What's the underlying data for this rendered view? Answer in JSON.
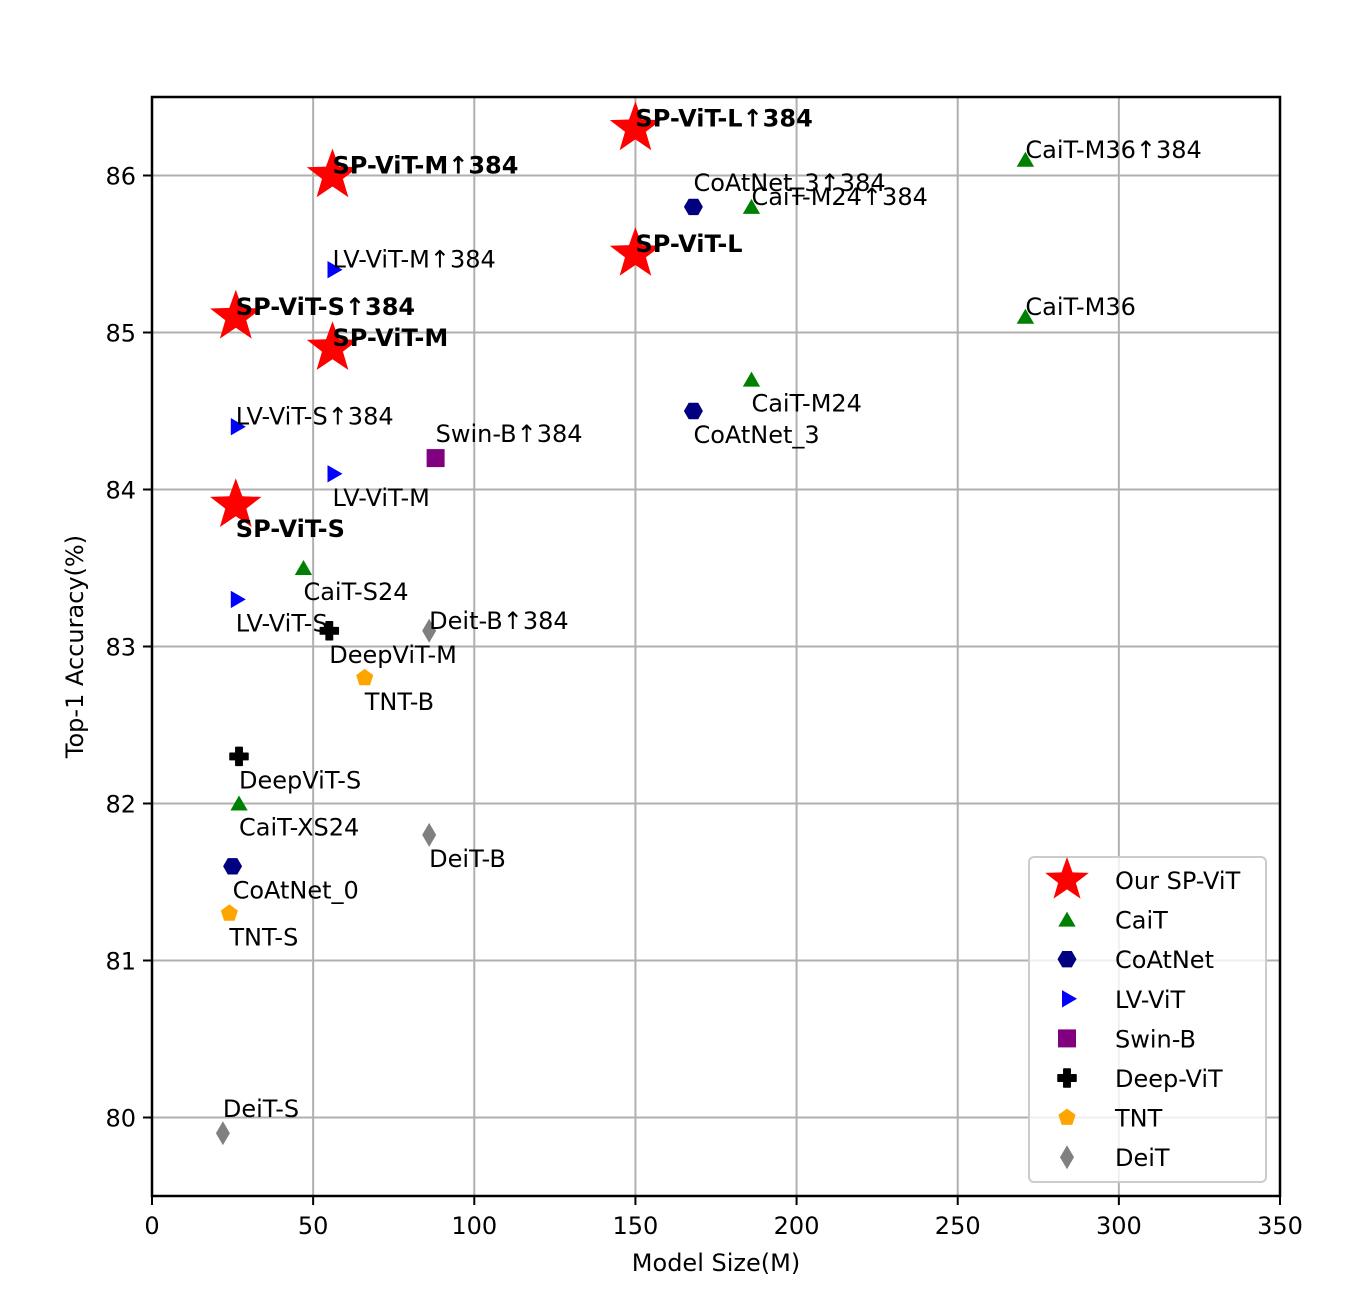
{
  "chart_data": {
    "type": "scatter",
    "xlabel": "Model Size(M)",
    "ylabel": "Top-1 Accuracy(%)",
    "xlim": [
      0,
      350
    ],
    "ylim": [
      79.5,
      86.5
    ],
    "xticks": [
      0,
      50,
      100,
      150,
      200,
      250,
      300,
      350
    ],
    "yticks": [
      80,
      81,
      82,
      83,
      84,
      85,
      86
    ],
    "grid": true,
    "legend_position": "lower-right",
    "series": [
      {
        "name": "Our SP-ViT",
        "marker": "star",
        "color": "#ff0000",
        "points": [
          {
            "x": 26,
            "y": 83.9,
            "label": "SP-ViT-S",
            "label_pos": "below",
            "bold": true
          },
          {
            "x": 26,
            "y": 85.1,
            "label": "SP-ViT-S↑384",
            "label_pos": "right",
            "bold": true
          },
          {
            "x": 56,
            "y": 84.9,
            "label": "SP-ViT-M",
            "label_pos": "right",
            "bold": true
          },
          {
            "x": 56,
            "y": 86.0,
            "label": "SP-ViT-M↑384",
            "label_pos": "right",
            "bold": true
          },
          {
            "x": 150,
            "y": 85.5,
            "label": "SP-ViT-L",
            "label_pos": "right",
            "bold": true
          },
          {
            "x": 150,
            "y": 86.3,
            "label": "SP-ViT-L↑384",
            "label_pos": "right",
            "bold": true
          }
        ]
      },
      {
        "name": "CaiT",
        "marker": "triangle",
        "color": "#008000",
        "points": [
          {
            "x": 27,
            "y": 82.0,
            "label": "CaiT-XS24",
            "label_pos": "below"
          },
          {
            "x": 47,
            "y": 83.5,
            "label": "CaiT-S24",
            "label_pos": "below"
          },
          {
            "x": 186,
            "y": 84.7,
            "label": "CaiT-M24",
            "label_pos": "below"
          },
          {
            "x": 186,
            "y": 85.8,
            "label": "CaiT-M24↑384",
            "label_pos": "right"
          },
          {
            "x": 271,
            "y": 85.1,
            "label": "CaiT-M36",
            "label_pos": "right"
          },
          {
            "x": 271,
            "y": 86.1,
            "label": "CaiT-M36↑384",
            "label_pos": "right"
          }
        ]
      },
      {
        "name": "CoAtNet",
        "marker": "hexagon",
        "color": "#000080",
        "points": [
          {
            "x": 25,
            "y": 81.6,
            "label": "CoAtNet_0",
            "label_pos": "below"
          },
          {
            "x": 168,
            "y": 84.5,
            "label": "CoAtNet_3",
            "label_pos": "below"
          },
          {
            "x": 168,
            "y": 85.8,
            "label": "CoAtNet_3↑384",
            "label_pos": "above"
          }
        ]
      },
      {
        "name": "LV-ViT",
        "marker": "triangle-right",
        "color": "#0000ff",
        "points": [
          {
            "x": 26,
            "y": 83.3,
            "label": "LV-ViT-S",
            "label_pos": "below"
          },
          {
            "x": 26,
            "y": 84.4,
            "label": "LV-ViT-S↑384",
            "label_pos": "right"
          },
          {
            "x": 56,
            "y": 84.1,
            "label": "LV-ViT-M",
            "label_pos": "below"
          },
          {
            "x": 56,
            "y": 85.4,
            "label": "LV-ViT-M↑384",
            "label_pos": "right"
          }
        ]
      },
      {
        "name": "Swin-B",
        "marker": "square",
        "color": "#800080",
        "points": [
          {
            "x": 88,
            "y": 84.2,
            "label": "Swin-B↑384",
            "label_pos": "above"
          }
        ]
      },
      {
        "name": "Deep-ViT",
        "marker": "plus",
        "color": "#000000",
        "points": [
          {
            "x": 27,
            "y": 82.3,
            "label": "DeepViT-S",
            "label_pos": "below"
          },
          {
            "x": 55,
            "y": 83.1,
            "label": "DeepViT-M",
            "label_pos": "below"
          }
        ]
      },
      {
        "name": "TNT",
        "marker": "pentagon",
        "color": "#ffa500",
        "points": [
          {
            "x": 24,
            "y": 81.3,
            "label": "TNT-S",
            "label_pos": "below"
          },
          {
            "x": 66,
            "y": 82.8,
            "label": "TNT-B",
            "label_pos": "below"
          }
        ]
      },
      {
        "name": "DeiT",
        "marker": "diamond",
        "color": "#808080",
        "points": [
          {
            "x": 22,
            "y": 79.9,
            "label": "DeiT-S",
            "label_pos": "above"
          },
          {
            "x": 86,
            "y": 81.8,
            "label": "DeiT-B",
            "label_pos": "below"
          },
          {
            "x": 86,
            "y": 83.1,
            "label": "Deit-B↑384",
            "label_pos": "right"
          }
        ]
      }
    ]
  }
}
